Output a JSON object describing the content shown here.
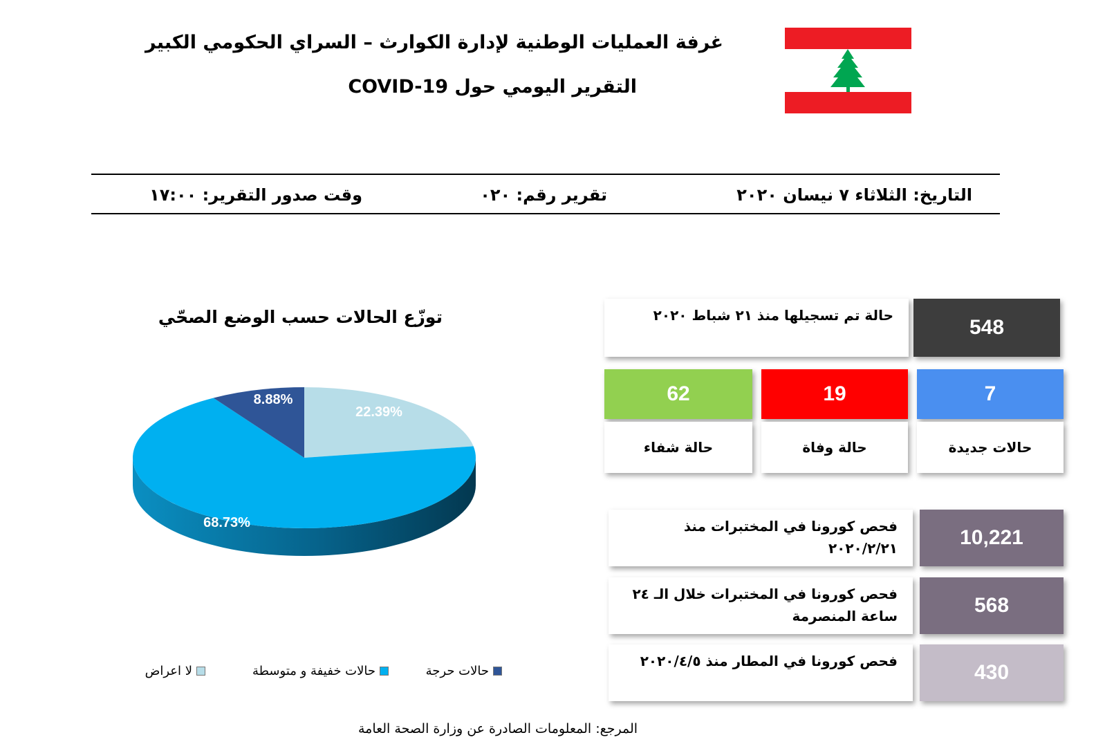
{
  "header": {
    "title": "غرفة العمليات الوطنية لإدارة الكوارث – السراي الحكومي الكبير",
    "subtitle": "التقرير اليومي حول COVID-19"
  },
  "info_bar": {
    "date": "التاريخ: الثلاثاء ٧ نيسان ٢٠٢٠",
    "report_number": "تقرير رقم: ٠٢٠",
    "issue_time": "وقت صدور التقرير: ١٧:٠٠"
  },
  "stats": {
    "total": {
      "value": "548",
      "label": "حالة تم تسجيلها منذ ٢١ شباط ٢٠٢٠",
      "color": "#3d3d3d"
    },
    "new": {
      "value": "7",
      "label": "حالات جديدة",
      "color": "#4a8ff0"
    },
    "deaths": {
      "value": "19",
      "label": "حالة وفاة",
      "color": "#ff0000"
    },
    "recovered": {
      "value": "62",
      "label": "حالة شفاء",
      "color": "#92d050"
    },
    "lab_tests_total": {
      "value": "10,221",
      "label_line1": "فحص كورونا في المختبرات منذ",
      "label_line2": "٢٠٢٠/٢/٢١",
      "color": "#7a6e80"
    },
    "lab_tests_24h": {
      "value": "568",
      "label_line1": "فحص كورونا في المختبرات خلال الـ ٢٤",
      "label_line2": "ساعة المنصرمة",
      "color": "#7a6e80"
    },
    "airport_tests": {
      "value": "430",
      "label": "فحص كورونا في المطار منذ ٢٠٢٠/٤/٥",
      "color": "#c4bcc8"
    }
  },
  "chart_data": {
    "type": "pie",
    "title": "توزّع الحالات حسب الوضع الصحّي",
    "categories": [
      "لا اعراض",
      "حالات خفيفة و متوسطة",
      "حالات حرجة"
    ],
    "values": [
      22.39,
      68.73,
      8.88
    ],
    "labels": [
      "22.39%",
      "68.73%",
      "8.88%"
    ],
    "colors": [
      "#b7dde8",
      "#00b0f0",
      "#2f5597"
    ],
    "legend_position": "bottom"
  },
  "footer": {
    "source": "المرجع: المعلومات الصادرة عن وزارة الصحة العامة"
  }
}
